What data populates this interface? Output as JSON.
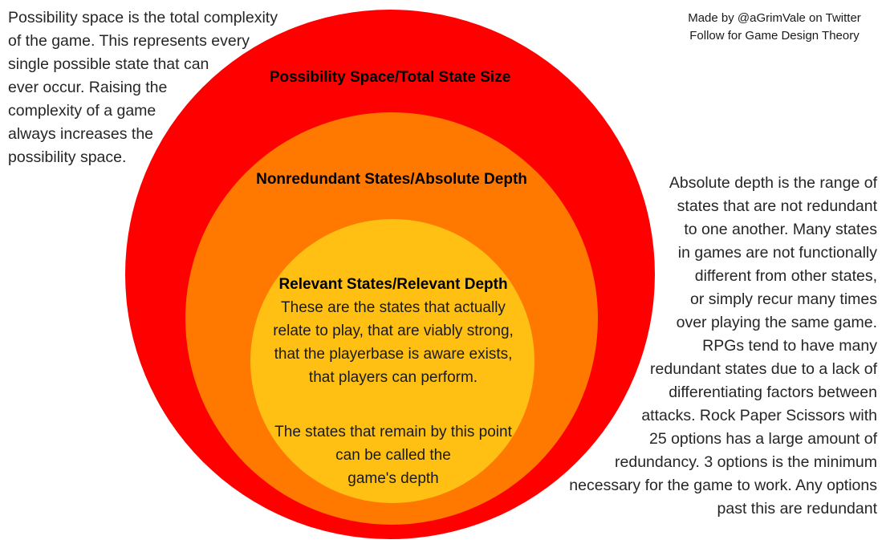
{
  "attribution": {
    "text": "Made by @aGrimVale on Twitter\nFollow for Game Design Theory"
  },
  "left_note": {
    "text": "Possibility space is the total complexity\nof the game. This represents every\nsingle possible state that can\never occur. Raising the\ncomplexity of a game\nalways increases the\npossibility space."
  },
  "right_note": {
    "text": "Absolute depth is the range of\nstates that are not redundant\nto one another. Many states\nin games are not functionally\ndifferent from other states,\nor simply recur many times\nover playing the same game.\nRPGs tend to have many\nredundant states due to a lack of\ndifferentiating factors between\nattacks. Rock Paper Scissors with\n25 options has a large amount of\nredundancy. 3 options is the minimum\nnecessary for the game to work. Any options\npast this are redundant"
  },
  "diagram": {
    "outer_ring": {
      "label": "Possibility Space/Total State Size",
      "color": "#ff0000"
    },
    "middle_ring": {
      "label": "Nonredundant States/Absolute Depth",
      "color": "#ff7800"
    },
    "inner_ring": {
      "label": "Relevant States/Relevant Depth",
      "color": "#ffc013",
      "body": "These are the states that actually\nrelate to play, that are viably strong,\nthat the playerbase is aware exists,\nthat players can perform.",
      "body2": "The states that remain by this point\ncan be called the\ngame's depth"
    }
  }
}
